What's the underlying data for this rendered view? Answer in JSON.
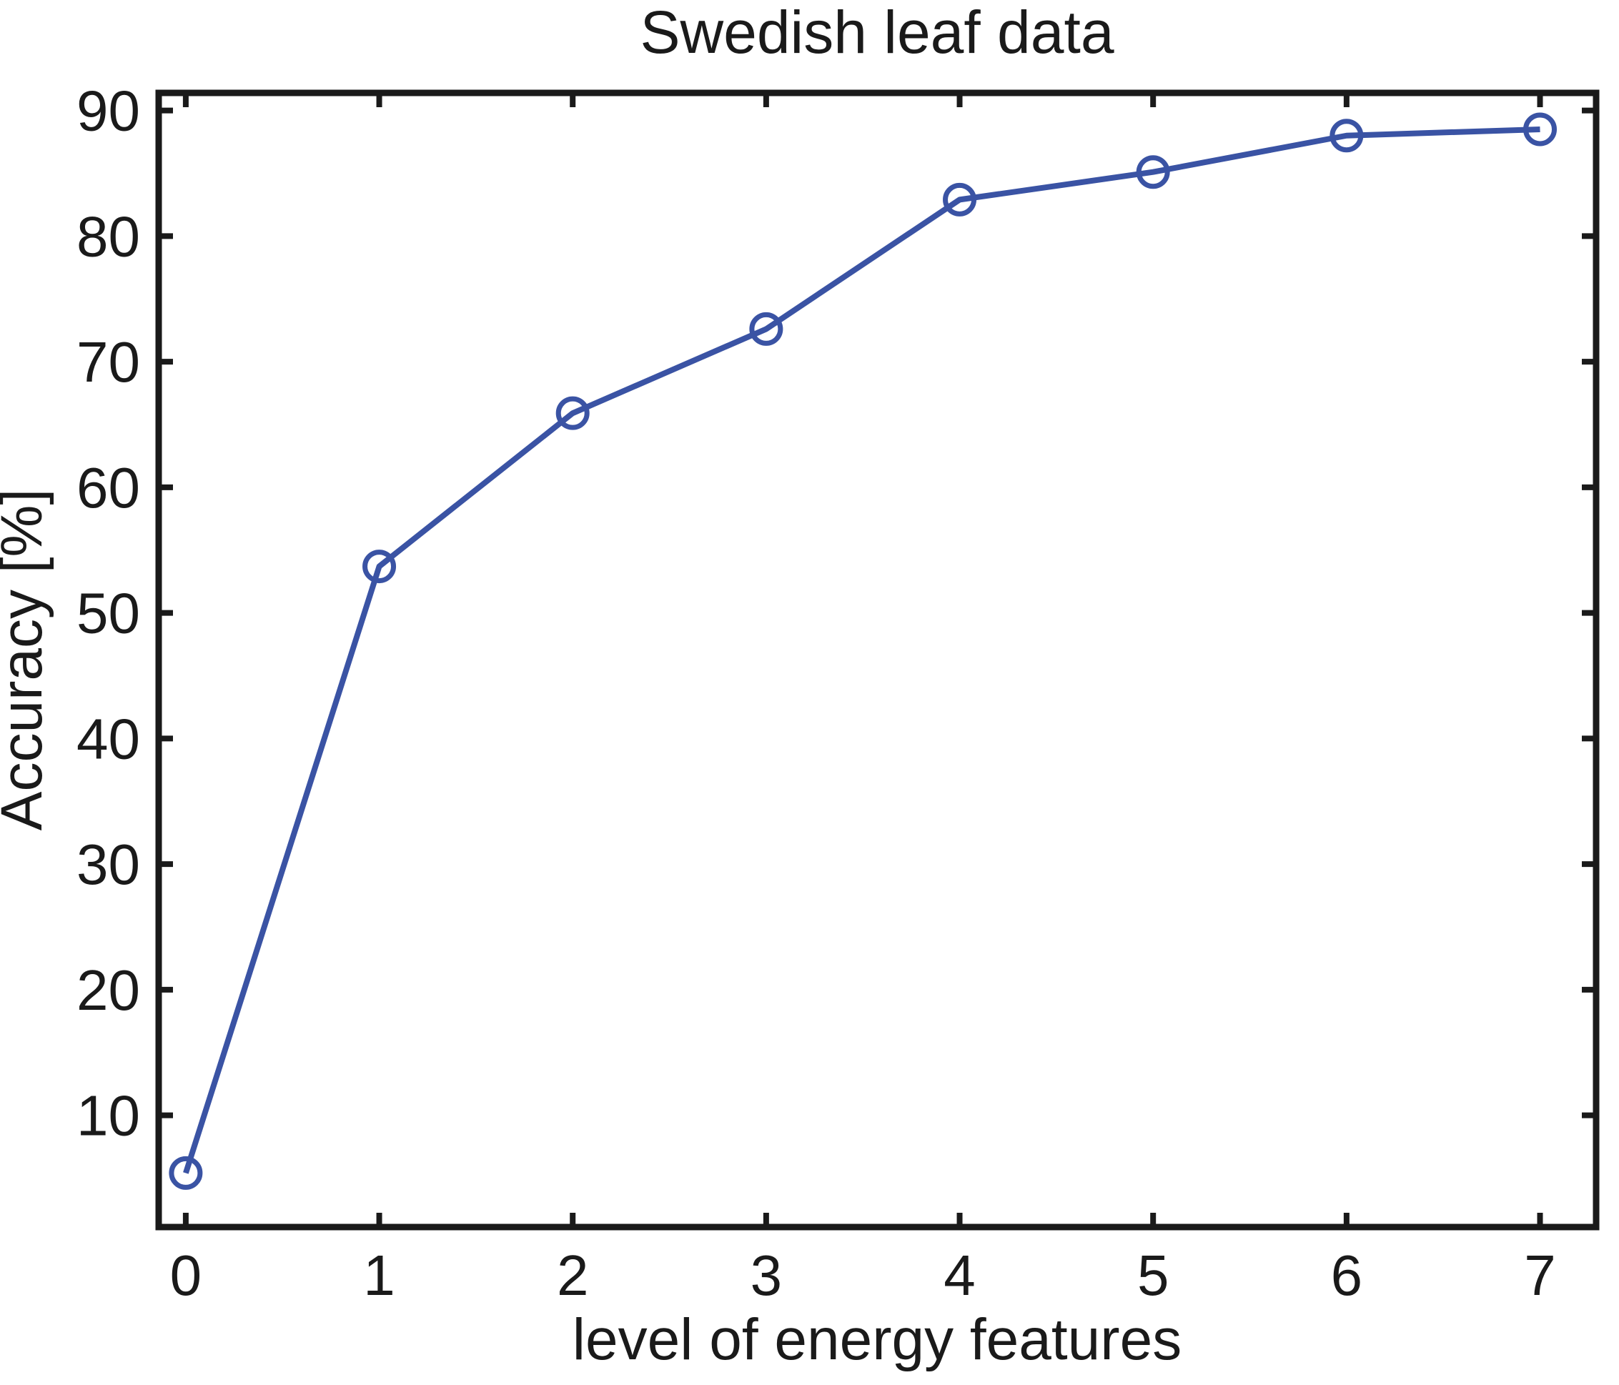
{
  "figure": {
    "background": "#ffffff"
  },
  "chart_data": {
    "type": "line",
    "title": "Swedish leaf data",
    "xlabel": "level of energy features",
    "ylabel": "Accuracy [%]",
    "x": [
      0,
      1,
      2,
      3,
      4,
      5,
      6,
      7
    ],
    "series": [
      {
        "name": "accuracy",
        "values": [
          5.4,
          53.7,
          65.9,
          72.6,
          82.9,
          85.1,
          88.0,
          88.5
        ],
        "color": "#3a53a4",
        "marker": "circle",
        "marker_fill": "none"
      }
    ],
    "x_ticks": [
      "0",
      "1",
      "2",
      "3",
      "4",
      "5",
      "6",
      "7"
    ],
    "y_ticks": [
      "10",
      "20",
      "30",
      "40",
      "50",
      "60",
      "70",
      "80",
      "90"
    ],
    "x_tick_values": [
      0,
      1,
      2,
      3,
      4,
      5,
      6,
      7
    ],
    "y_tick_values": [
      10,
      20,
      30,
      40,
      50,
      60,
      70,
      80,
      90
    ],
    "xlim": [
      -0.14,
      7.29
    ],
    "ylim": [
      1.1,
      91.4
    ],
    "grid": false,
    "legend": "none",
    "box": true,
    "tick_direction": "in",
    "axis_color": "#1a1a1a"
  }
}
